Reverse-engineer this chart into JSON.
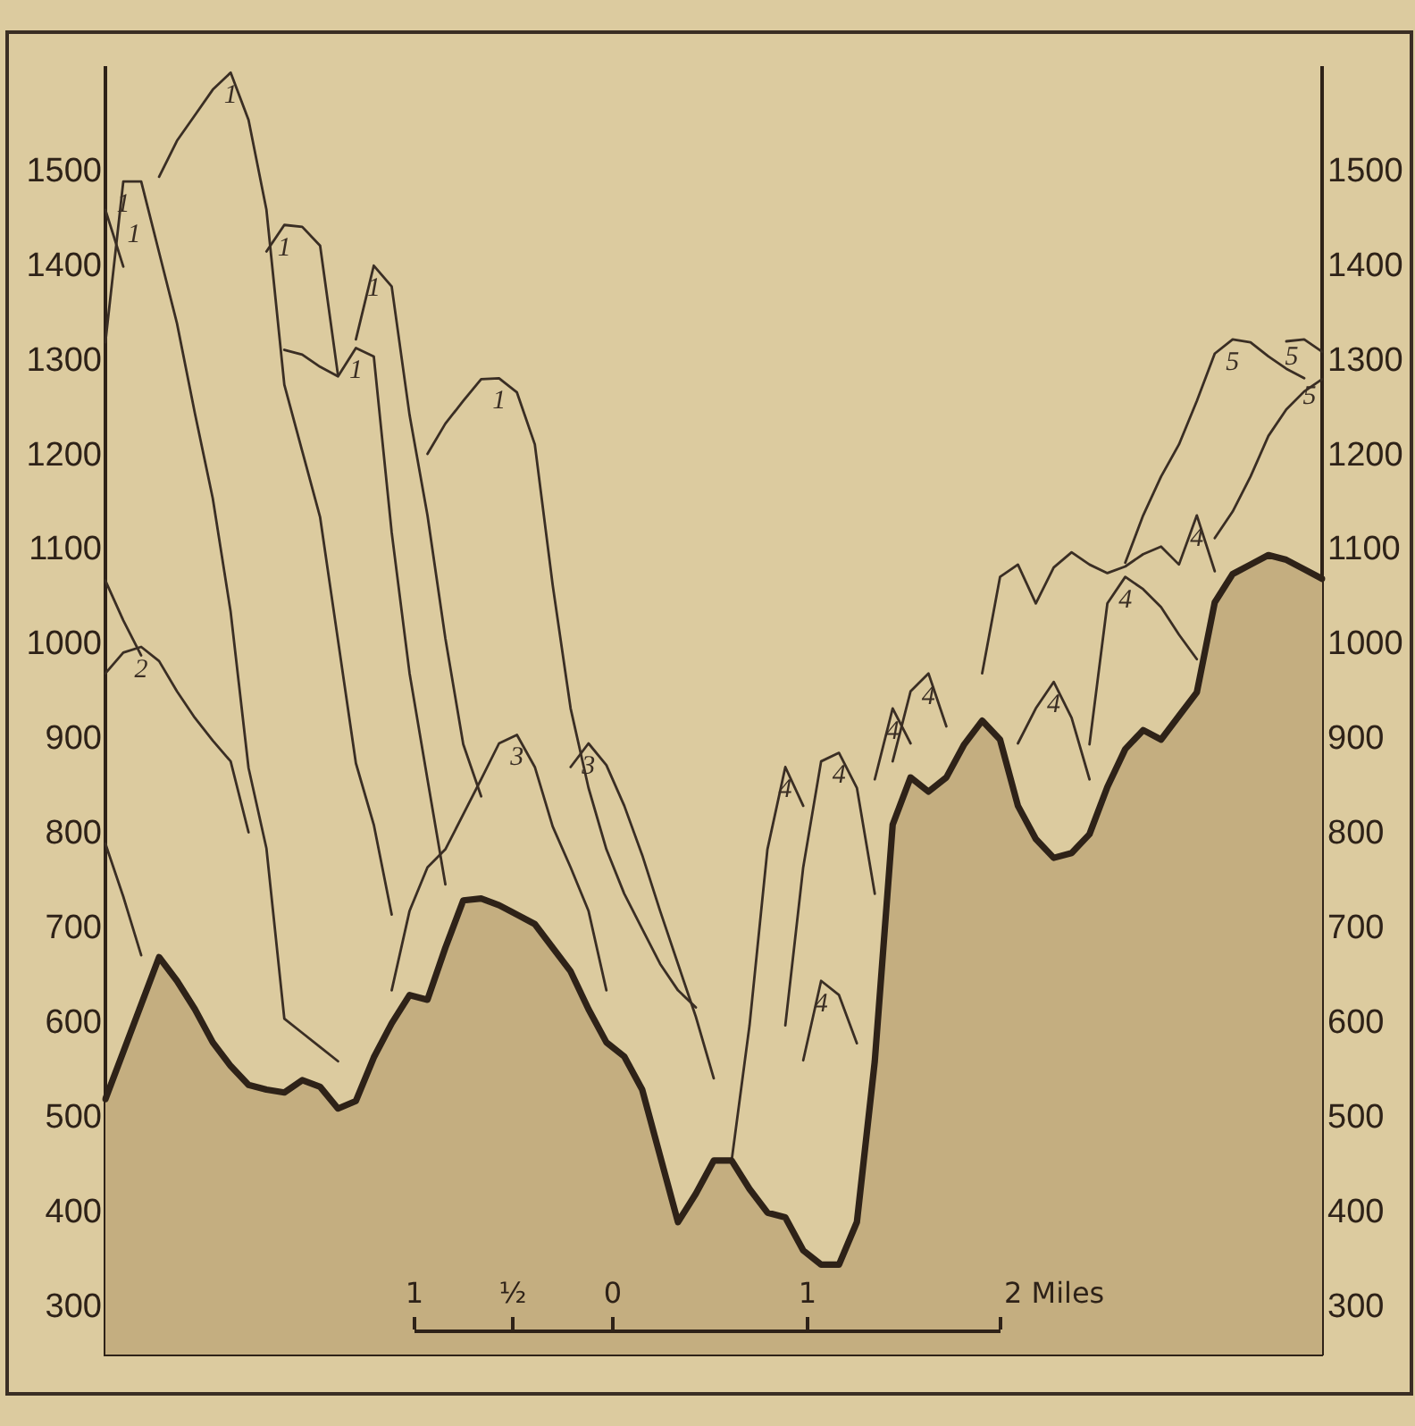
{
  "chart_data": {
    "type": "line",
    "categories": [
      null,
      null,
      null,
      null,
      null,
      null,
      null,
      null,
      null,
      null,
      null,
      null,
      null,
      null,
      null,
      null,
      null,
      null,
      null,
      null,
      null,
      null,
      null,
      null,
      null,
      null,
      null,
      null,
      null,
      null,
      null,
      null,
      null,
      null,
      null,
      null,
      null,
      null,
      null,
      null,
      null,
      null,
      null,
      null,
      null,
      null,
      null,
      null,
      null,
      null,
      null,
      null,
      null,
      null,
      null,
      null,
      null,
      null,
      null,
      null,
      null,
      null,
      null,
      null,
      null,
      null,
      null,
      null,
      null
    ],
    "ylim": [
      250,
      1610
    ],
    "yticks": [
      300,
      400,
      500,
      600,
      700,
      800,
      900,
      1000,
      1100,
      1200,
      1300,
      1400,
      1500
    ],
    "y2lim": [
      250,
      1610
    ],
    "y2ticks": [
      300,
      400,
      500,
      600,
      700,
      800,
      900,
      1000,
      1100,
      1200,
      1300,
      1400,
      1500
    ],
    "tick_labels": "y",
    "grid": false,
    "legend": false,
    "marker": "none",
    "line_style": "solid",
    "annotations": [
      "1",
      "½",
      "0",
      "1",
      "2 Miles"
    ],
    "series": [
      {
        "type": "area",
        "color": "#2e2218",
        "values": [
          520,
          570,
          620,
          670,
          645,
          615,
          580,
          555,
          535,
          530,
          527,
          540,
          533,
          510,
          518,
          564,
          600,
          630,
          625,
          680,
          730,
          732,
          725,
          715,
          705,
          680,
          655,
          615,
          580,
          565,
          530,
          460,
          390,
          420,
          455,
          455,
          425,
          400,
          395,
          360,
          345,
          345,
          390,
          560,
          810,
          860,
          845,
          860,
          895,
          920,
          900,
          830,
          795,
          775,
          780,
          800,
          850,
          890,
          910,
          900,
          925,
          950,
          1045,
          1075,
          1085,
          1095,
          1090,
          1080,
          1070
        ]
      },
      {
        "name": "1",
        "color": "#3a2e24",
        "values": [
          1320,
          1490,
          1490,
          1415,
          1340,
          1245,
          1155,
          1035,
          870,
          785,
          605,
          590,
          575,
          560,
          null,
          null,
          null,
          null,
          null,
          null,
          null,
          null,
          null,
          null,
          null,
          null,
          null,
          null,
          null,
          null,
          null,
          null,
          null,
          null,
          null,
          null,
          null,
          null,
          null,
          null,
          null,
          null,
          null,
          null,
          null,
          null,
          null,
          null,
          null,
          null,
          null,
          null,
          null,
          null,
          null,
          null,
          null,
          null,
          null,
          null,
          null,
          null,
          null,
          null,
          null,
          null,
          null,
          null,
          null
        ]
      },
      {
        "name": "1",
        "color": "#3a2e24",
        "values": [
          1460,
          1400,
          null,
          null,
          null,
          null,
          null,
          null,
          null,
          null,
          null,
          null,
          null,
          null,
          null,
          null,
          null,
          null,
          null,
          null,
          null,
          null,
          null,
          null,
          null,
          null,
          null,
          null,
          null,
          null,
          null,
          null,
          null,
          null,
          null,
          null,
          null,
          null,
          null,
          null,
          null,
          null,
          null,
          null,
          null,
          null,
          null,
          null,
          null,
          null,
          null,
          null,
          null,
          null,
          null,
          null,
          null,
          null,
          null,
          null,
          null,
          null,
          null,
          null,
          null,
          null,
          null,
          null,
          null
        ]
      },
      {
        "name": "1",
        "color": "#3a2e24",
        "values": [
          null,
          null,
          null,
          1495,
          1533,
          1560,
          1587,
          1605,
          1555,
          1460,
          1275,
          1205,
          1135,
          1005,
          875,
          810,
          715,
          null,
          null,
          null,
          null,
          null,
          null,
          null,
          null,
          null,
          null,
          null,
          null,
          null,
          null,
          null,
          null,
          null,
          null,
          null,
          null,
          null,
          null,
          null,
          null,
          null,
          null,
          null,
          null,
          null,
          null,
          null,
          null,
          null,
          null,
          null,
          null,
          null,
          null,
          null,
          null,
          null,
          null,
          null,
          null,
          null,
          null,
          null,
          null,
          null,
          null,
          null,
          null
        ]
      },
      {
        "name": "1",
        "color": "#3a2e24",
        "values": [
          null,
          null,
          null,
          null,
          null,
          null,
          null,
          null,
          null,
          1416,
          1444,
          1442,
          1422,
          1285,
          null,
          null,
          null,
          null,
          null,
          null,
          null,
          null,
          null,
          null,
          null,
          null,
          null,
          null,
          null,
          null,
          null,
          null,
          null,
          null,
          null,
          null,
          null,
          null,
          null,
          null,
          null,
          null,
          null,
          null,
          null,
          null,
          null,
          null,
          null,
          null,
          null,
          null,
          null,
          null,
          null,
          null,
          null,
          null,
          null,
          null,
          null,
          null,
          null,
          null,
          null,
          null,
          null,
          null,
          null
        ]
      },
      {
        "name": "1",
        "color": "#3a2e24",
        "values": [
          null,
          null,
          null,
          null,
          null,
          null,
          null,
          null,
          null,
          null,
          1312,
          1307,
          1294,
          1284,
          1314,
          1305,
          1119,
          970,
          858,
          747,
          null,
          null,
          null,
          null,
          null,
          null,
          null,
          null,
          null,
          null,
          null,
          null,
          null,
          null,
          null,
          null,
          null,
          null,
          null,
          null,
          null,
          null,
          null,
          null,
          null,
          null,
          null,
          null,
          null,
          null,
          null,
          null,
          null,
          null,
          null,
          null,
          null,
          null,
          null,
          null,
          null,
          null,
          null,
          null,
          null,
          null,
          null,
          null,
          null
        ]
      },
      {
        "name": "1",
        "color": "#3a2e24",
        "values": [
          null,
          null,
          null,
          null,
          null,
          null,
          null,
          null,
          null,
          null,
          null,
          null,
          null,
          null,
          1323,
          1401,
          1379,
          1243,
          1137,
          1007,
          895,
          840,
          null,
          null,
          null,
          null,
          null,
          null,
          null,
          null,
          null,
          null,
          null,
          null,
          null,
          null,
          null,
          null,
          null,
          null,
          null,
          null,
          null,
          null,
          null,
          null,
          null,
          null,
          null,
          null,
          null,
          null,
          null,
          null,
          null,
          null,
          null,
          null,
          null,
          null,
          null,
          null,
          null,
          null,
          null,
          null,
          null,
          null,
          null
        ]
      },
      {
        "name": "1",
        "color": "#3a2e24",
        "values": [
          null,
          null,
          null,
          null,
          null,
          null,
          null,
          null,
          null,
          null,
          null,
          null,
          null,
          null,
          null,
          null,
          null,
          null,
          1202,
          1234,
          1258,
          1281,
          1282,
          1267,
          1212,
          1063,
          933,
          849,
          784,
          737,
          700,
          663,
          635,
          617,
          null,
          null,
          null,
          null,
          null,
          null,
          null,
          null,
          null,
          null,
          null,
          null,
          null,
          null,
          null,
          null,
          null,
          null,
          null,
          null,
          null,
          null,
          null,
          null,
          null,
          null,
          null,
          null,
          null,
          null,
          null,
          null,
          null,
          null,
          null
        ]
      },
      {
        "name": "2",
        "color": "#3a2e24",
        "values": [
          970,
          992,
          998,
          983,
          951,
          923,
          899,
          877,
          802,
          null,
          null,
          null,
          null,
          null,
          null,
          null,
          null,
          null,
          null,
          null,
          null,
          null,
          null,
          null,
          null,
          null,
          null,
          null,
          null,
          null,
          null,
          null,
          null,
          null,
          null,
          null,
          null,
          null,
          null,
          null,
          null,
          null,
          null,
          null,
          null,
          null,
          null,
          null,
          null,
          null,
          null,
          null,
          null,
          null,
          null,
          null,
          null,
          null,
          null,
          null,
          null,
          null,
          null,
          null,
          null,
          null,
          null,
          null,
          null
        ]
      },
      {
        "color": "#3a2e24",
        "values": [
          1068,
          1026,
          989,
          null,
          null,
          null,
          null,
          null,
          null,
          null,
          null,
          null,
          null,
          null,
          null,
          null,
          null,
          null,
          null,
          null,
          null,
          null,
          null,
          null,
          null,
          null,
          null,
          null,
          null,
          null,
          null,
          null,
          null,
          null,
          null,
          null,
          null,
          null,
          null,
          null,
          null,
          null,
          null,
          null,
          null,
          null,
          null,
          null,
          null,
          null,
          null,
          null,
          null,
          null,
          null,
          null,
          null,
          null,
          null,
          null,
          null,
          null,
          null,
          null,
          null,
          null,
          null,
          null,
          null
        ]
      },
      {
        "color": "#3a2e24",
        "values": [
          790,
          734,
          672,
          null,
          null,
          null,
          null,
          null,
          null,
          null,
          null,
          null,
          null,
          null,
          null,
          null,
          null,
          null,
          null,
          null,
          null,
          null,
          null,
          null,
          null,
          null,
          null,
          null,
          null,
          null,
          null,
          null,
          null,
          null,
          null,
          null,
          null,
          null,
          null,
          null,
          null,
          null,
          null,
          null,
          null,
          null,
          null,
          null,
          null,
          null,
          null,
          null,
          null,
          null,
          null,
          null,
          null,
          null,
          null,
          null,
          null,
          null,
          null,
          null,
          null,
          null,
          null,
          null,
          null
        ]
      },
      {
        "name": "3",
        "color": "#3a2e24",
        "values": [
          null,
          null,
          null,
          null,
          null,
          null,
          null,
          null,
          null,
          null,
          null,
          null,
          null,
          null,
          null,
          null,
          635,
          719,
          765,
          784,
          821,
          858,
          896,
          905,
          871,
          808,
          765,
          719,
          635,
          null,
          null,
          null,
          null,
          null,
          null,
          null,
          null,
          null,
          null,
          null,
          null,
          null,
          null,
          null,
          null,
          null,
          null,
          null,
          null,
          null,
          null,
          null,
          null,
          null,
          null,
          null,
          null,
          null,
          null,
          null,
          null,
          null,
          null,
          null,
          null,
          null,
          null,
          null,
          null
        ]
      },
      {
        "name": "3",
        "color": "#3a2e24",
        "values": [
          null,
          null,
          null,
          null,
          null,
          null,
          null,
          null,
          null,
          null,
          null,
          null,
          null,
          null,
          null,
          null,
          null,
          null,
          null,
          null,
          null,
          null,
          null,
          null,
          null,
          null,
          871,
          896,
          873,
          830,
          778,
          719,
          663,
          607,
          542,
          null,
          null,
          null,
          null,
          null,
          null,
          null,
          null,
          null,
          null,
          null,
          null,
          null,
          null,
          null,
          null,
          null,
          null,
          null,
          null,
          null,
          null,
          null,
          null,
          null,
          null,
          null,
          null,
          null,
          null,
          null,
          null,
          null,
          null
        ]
      },
      {
        "name": "4",
        "color": "#3a2e24",
        "values": [
          null,
          null,
          null,
          null,
          null,
          null,
          null,
          null,
          null,
          null,
          null,
          null,
          null,
          null,
          null,
          null,
          null,
          null,
          null,
          null,
          null,
          null,
          null,
          null,
          null,
          null,
          null,
          null,
          null,
          null,
          null,
          null,
          null,
          null,
          null,
          455,
          598,
          784,
          871,
          830,
          null,
          null,
          null,
          null,
          null,
          null,
          null,
          null,
          null,
          null,
          null,
          null,
          null,
          null,
          null,
          null,
          null,
          null,
          null,
          null,
          null,
          null,
          null,
          null,
          null,
          null,
          null,
          null,
          null
        ]
      },
      {
        "name": "4",
        "color": "#3a2e24",
        "values": [
          null,
          null,
          null,
          null,
          null,
          null,
          null,
          null,
          null,
          null,
          null,
          null,
          null,
          null,
          null,
          null,
          null,
          null,
          null,
          null,
          null,
          null,
          null,
          null,
          null,
          null,
          null,
          null,
          null,
          null,
          null,
          null,
          null,
          null,
          null,
          null,
          null,
          null,
          598,
          765,
          877,
          886,
          849,
          737,
          null,
          null,
          null,
          null,
          null,
          null,
          null,
          null,
          null,
          null,
          null,
          null,
          null,
          null,
          null,
          null,
          null,
          null,
          null,
          null,
          null,
          null,
          null,
          null,
          null
        ]
      },
      {
        "name": "4",
        "color": "#3a2e24",
        "values": [
          null,
          null,
          null,
          null,
          null,
          null,
          null,
          null,
          null,
          null,
          null,
          null,
          null,
          null,
          null,
          null,
          null,
          null,
          null,
          null,
          null,
          null,
          null,
          null,
          null,
          null,
          null,
          null,
          null,
          null,
          null,
          null,
          null,
          null,
          null,
          null,
          null,
          null,
          null,
          561,
          645,
          630,
          579,
          null,
          null,
          null,
          null,
          null,
          null,
          null,
          null,
          null,
          null,
          null,
          null,
          null,
          null,
          null,
          null,
          null,
          null,
          null,
          null,
          null,
          null,
          null,
          null,
          null,
          null
        ]
      },
      {
        "name": "4",
        "color": "#3a2e24",
        "values": [
          null,
          null,
          null,
          null,
          null,
          null,
          null,
          null,
          null,
          null,
          null,
          null,
          null,
          null,
          null,
          null,
          null,
          null,
          null,
          null,
          null,
          null,
          null,
          null,
          null,
          null,
          null,
          null,
          null,
          null,
          null,
          null,
          null,
          null,
          null,
          null,
          null,
          null,
          null,
          null,
          null,
          null,
          null,
          858,
          933,
          896,
          null,
          null,
          null,
          null,
          null,
          null,
          null,
          null,
          null,
          null,
          null,
          null,
          null,
          null,
          null,
          null,
          null,
          null,
          null,
          null,
          null,
          null,
          null
        ]
      },
      {
        "name": "4",
        "color": "#3a2e24",
        "values": [
          null,
          null,
          null,
          null,
          null,
          null,
          null,
          null,
          null,
          null,
          null,
          null,
          null,
          null,
          null,
          null,
          null,
          null,
          null,
          null,
          null,
          null,
          null,
          null,
          null,
          null,
          null,
          null,
          null,
          null,
          null,
          null,
          null,
          null,
          null,
          null,
          null,
          null,
          null,
          null,
          null,
          null,
          null,
          null,
          877,
          951,
          970,
          914,
          null,
          null,
          null,
          null,
          null,
          null,
          null,
          null,
          null,
          null,
          null,
          null,
          null,
          null,
          null,
          null,
          null,
          null,
          null,
          null,
          null
        ]
      },
      {
        "name": "4",
        "color": "#3a2e24",
        "values": [
          null,
          null,
          null,
          null,
          null,
          null,
          null,
          null,
          null,
          null,
          null,
          null,
          null,
          null,
          null,
          null,
          null,
          null,
          null,
          null,
          null,
          null,
          null,
          null,
          null,
          null,
          null,
          null,
          null,
          null,
          null,
          null,
          null,
          null,
          null,
          null,
          null,
          null,
          null,
          null,
          null,
          null,
          null,
          null,
          null,
          null,
          null,
          null,
          null,
          970,
          1072,
          1085,
          1044,
          1082,
          1098,
          1085,
          1076,
          1083,
          1096,
          1104,
          1085,
          1137,
          1078,
          null,
          null,
          null,
          null,
          null,
          null
        ]
      },
      {
        "name": "4",
        "color": "#3a2e24",
        "values": [
          null,
          null,
          null,
          null,
          null,
          null,
          null,
          null,
          null,
          null,
          null,
          null,
          null,
          null,
          null,
          null,
          null,
          null,
          null,
          null,
          null,
          null,
          null,
          null,
          null,
          null,
          null,
          null,
          null,
          null,
          null,
          null,
          null,
          null,
          null,
          null,
          null,
          null,
          null,
          null,
          null,
          null,
          null,
          null,
          null,
          null,
          null,
          null,
          null,
          null,
          null,
          null,
          null,
          null,
          null,
          895,
          1044,
          1072,
          1059,
          1040,
          1011,
          985,
          null,
          null,
          null,
          null,
          null,
          null,
          null
        ]
      },
      {
        "name": "4",
        "color": "#3a2e24",
        "values": [
          null,
          null,
          null,
          null,
          null,
          null,
          null,
          null,
          null,
          null,
          null,
          null,
          null,
          null,
          null,
          null,
          null,
          null,
          null,
          null,
          null,
          null,
          null,
          null,
          null,
          null,
          null,
          null,
          null,
          null,
          null,
          null,
          null,
          null,
          null,
          null,
          null,
          null,
          null,
          null,
          null,
          null,
          null,
          null,
          null,
          null,
          null,
          null,
          null,
          null,
          null,
          896,
          933,
          961,
          923,
          858,
          null,
          null,
          null,
          null,
          null,
          null,
          null,
          null,
          null,
          null,
          null,
          null,
          null
        ]
      },
      {
        "name": "5",
        "color": "#3a2e24",
        "values": [
          null,
          null,
          null,
          null,
          null,
          null,
          null,
          null,
          null,
          null,
          null,
          null,
          null,
          null,
          null,
          null,
          null,
          null,
          null,
          null,
          null,
          null,
          null,
          null,
          null,
          null,
          null,
          null,
          null,
          null,
          null,
          null,
          null,
          null,
          null,
          null,
          null,
          null,
          null,
          null,
          null,
          null,
          null,
          null,
          null,
          null,
          null,
          null,
          null,
          null,
          null,
          null,
          null,
          null,
          null,
          null,
          null,
          1087,
          1137,
          1178,
          1212,
          1258,
          1308,
          1323,
          1320,
          1305,
          1292,
          1282,
          null
        ]
      },
      {
        "name": "5",
        "color": "#3a2e24",
        "values": [
          null,
          null,
          null,
          null,
          null,
          null,
          null,
          null,
          null,
          null,
          null,
          null,
          null,
          null,
          null,
          null,
          null,
          null,
          null,
          null,
          null,
          null,
          null,
          null,
          null,
          null,
          null,
          null,
          null,
          null,
          null,
          null,
          null,
          null,
          null,
          null,
          null,
          null,
          null,
          null,
          null,
          null,
          null,
          null,
          null,
          null,
          null,
          null,
          null,
          null,
          null,
          null,
          null,
          null,
          null,
          null,
          null,
          null,
          null,
          null,
          null,
          null,
          null,
          null,
          null,
          null,
          1321,
          1323,
          1310
        ]
      },
      {
        "name": "5",
        "color": "#3a2e24",
        "values": [
          null,
          null,
          null,
          null,
          null,
          null,
          null,
          null,
          null,
          null,
          null,
          null,
          null,
          null,
          null,
          null,
          null,
          null,
          null,
          null,
          null,
          null,
          null,
          null,
          null,
          null,
          null,
          null,
          null,
          null,
          null,
          null,
          null,
          null,
          null,
          null,
          null,
          null,
          null,
          null,
          null,
          null,
          null,
          null,
          null,
          null,
          null,
          null,
          null,
          null,
          null,
          null,
          null,
          null,
          null,
          null,
          null,
          null,
          null,
          null,
          null,
          null,
          1113,
          1141,
          1178,
          1221,
          1249,
          1268,
          1281
        ]
      }
    ]
  }
}
